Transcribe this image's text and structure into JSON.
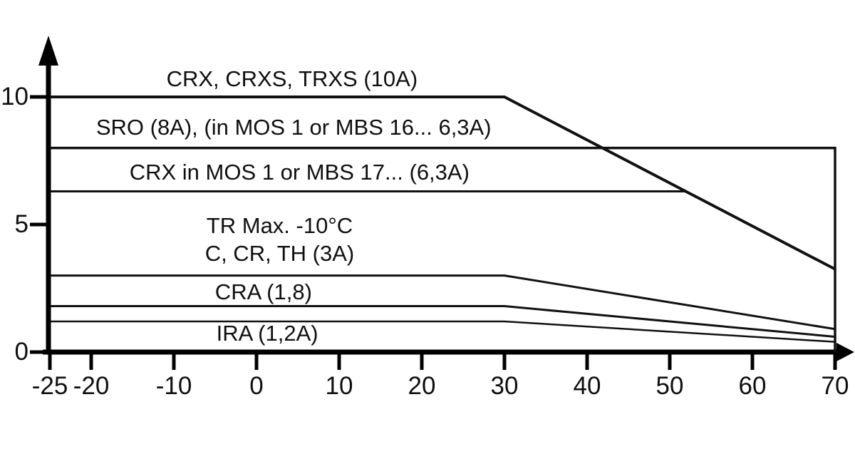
{
  "chart_data": {
    "type": "line",
    "title": "",
    "xlabel": "",
    "ylabel": "",
    "x_range": [
      -25,
      70
    ],
    "y_range": [
      0,
      11.5
    ],
    "grid": false,
    "legend_position": "none",
    "axis_color": "#000000",
    "line_color": "#111111",
    "background": "#ffffff",
    "x_ticks": [
      {
        "v": -25,
        "label": "-25"
      },
      {
        "v": -20,
        "label": "-20"
      },
      {
        "v": -10,
        "label": "-10"
      },
      {
        "v": 0,
        "label": "0"
      },
      {
        "v": 10,
        "label": "10"
      },
      {
        "v": 20,
        "label": "20"
      },
      {
        "v": 30,
        "label": "30"
      },
      {
        "v": 40,
        "label": "40"
      },
      {
        "v": 50,
        "label": "50"
      },
      {
        "v": 60,
        "label": "60"
      },
      {
        "v": 70,
        "label": "70"
      }
    ],
    "y_ticks": [
      {
        "v": 0,
        "label": "0"
      },
      {
        "v": 5,
        "label": "5"
      },
      {
        "v": 10,
        "label": "10"
      }
    ],
    "series": [
      {
        "name": "CRX, CRXS, TRXS (10A)",
        "points": [
          [
            -25,
            10
          ],
          [
            30,
            10
          ],
          [
            70,
            3.25
          ]
        ],
        "stroke_width": 4
      },
      {
        "name": "SRO (8A), (in MOS 1 or MBS 16... 6,3A)",
        "points": [
          [
            -25,
            8
          ],
          [
            70,
            8
          ],
          [
            70,
            0
          ]
        ],
        "stroke_width": 3.5
      },
      {
        "name": "CRX in MOS 1 or MBS 17... (6,3A)",
        "points": [
          [
            -25,
            6.3
          ],
          [
            52,
            6.3
          ]
        ],
        "stroke_width": 3
      },
      {
        "name": "C, CR, TH (3A)",
        "points": [
          [
            -25,
            3
          ],
          [
            30,
            3
          ],
          [
            70,
            0.9
          ]
        ],
        "stroke_width": 3
      },
      {
        "name": "CRA (1,8)",
        "points": [
          [
            -25,
            1.8
          ],
          [
            30,
            1.8
          ],
          [
            70,
            0.6
          ]
        ],
        "stroke_width": 3
      },
      {
        "name": "IRA (1,2A)",
        "points": [
          [
            -25,
            1.2
          ],
          [
            30,
            1.2
          ],
          [
            70,
            0.4
          ]
        ],
        "stroke_width": 2.5
      }
    ],
    "annotations": [
      {
        "text": "CRX, CRXS, TRXS (10A)",
        "x": 4.3,
        "y": 10.7
      },
      {
        "text": "SRO (8A), (in MOS 1 or MBS 16... 6,3A)",
        "x": 4.5,
        "y": 8.8
      },
      {
        "text": "CRX in MOS 1 or MBS 17... (6,3A)",
        "x": 5.2,
        "y": 7.05
      },
      {
        "text": "TR Max. -10°C",
        "x": 2.8,
        "y": 4.95
      },
      {
        "text": "C, CR, TH (3A)",
        "x": 2.8,
        "y": 3.85
      },
      {
        "text": "CRA (1,8)",
        "x": 0.85,
        "y": 2.35
      },
      {
        "text": "IRA (1,2A)",
        "x": 1.3,
        "y": 0.73
      }
    ]
  }
}
